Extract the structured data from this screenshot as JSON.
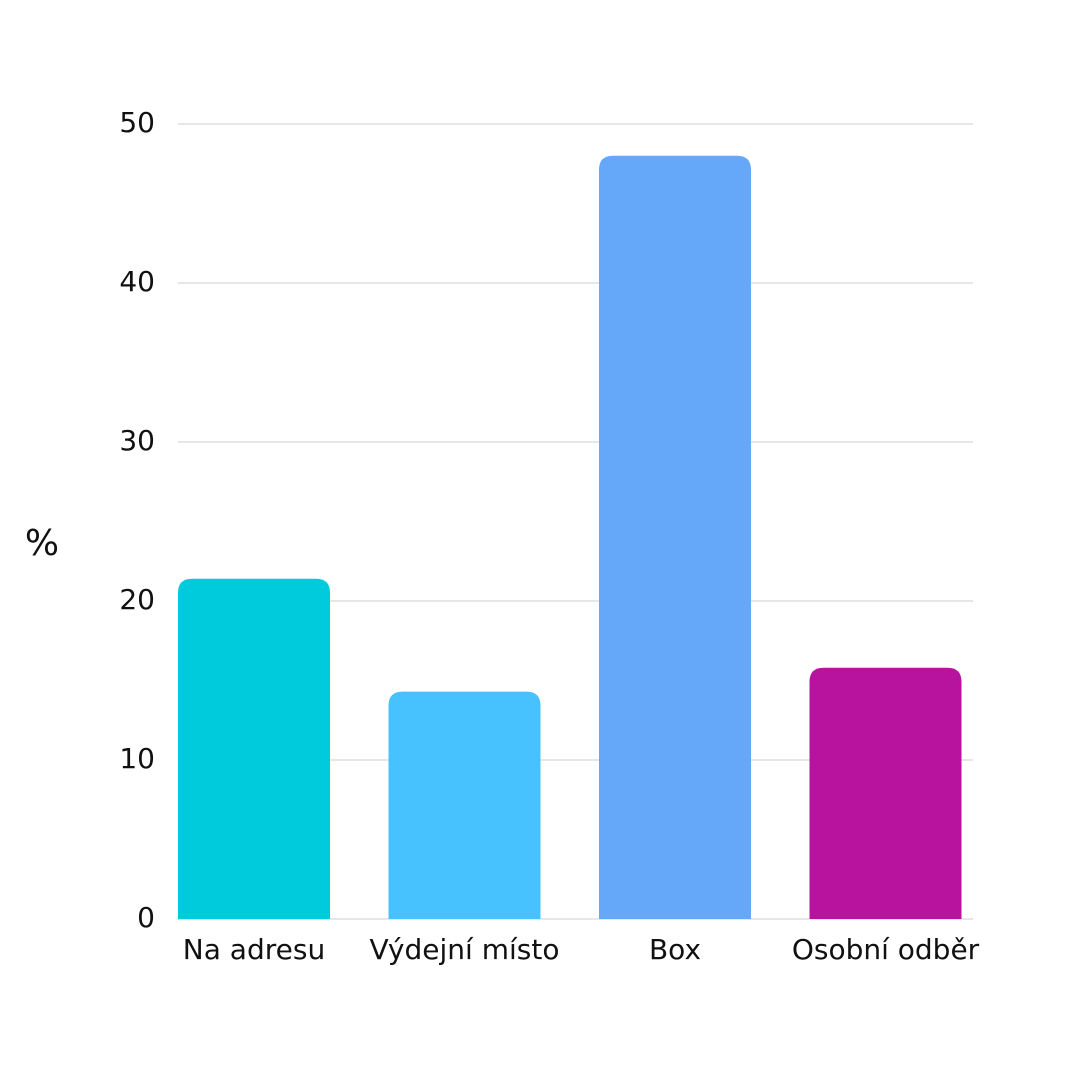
{
  "chart_data": {
    "type": "bar",
    "ylabel": "%",
    "categories": [
      "Na adresu",
      "Výdejní místo",
      "Box",
      "Osobní odběr"
    ],
    "values": [
      21.4,
      14.3,
      48,
      15.8
    ],
    "colors": [
      "#00cbdc",
      "#48c1ff",
      "#65a8fa",
      "#b8139f"
    ],
    "ylim": [
      0,
      50
    ],
    "yticks": [
      0,
      10,
      20,
      30,
      40,
      50
    ],
    "grid": true
  }
}
